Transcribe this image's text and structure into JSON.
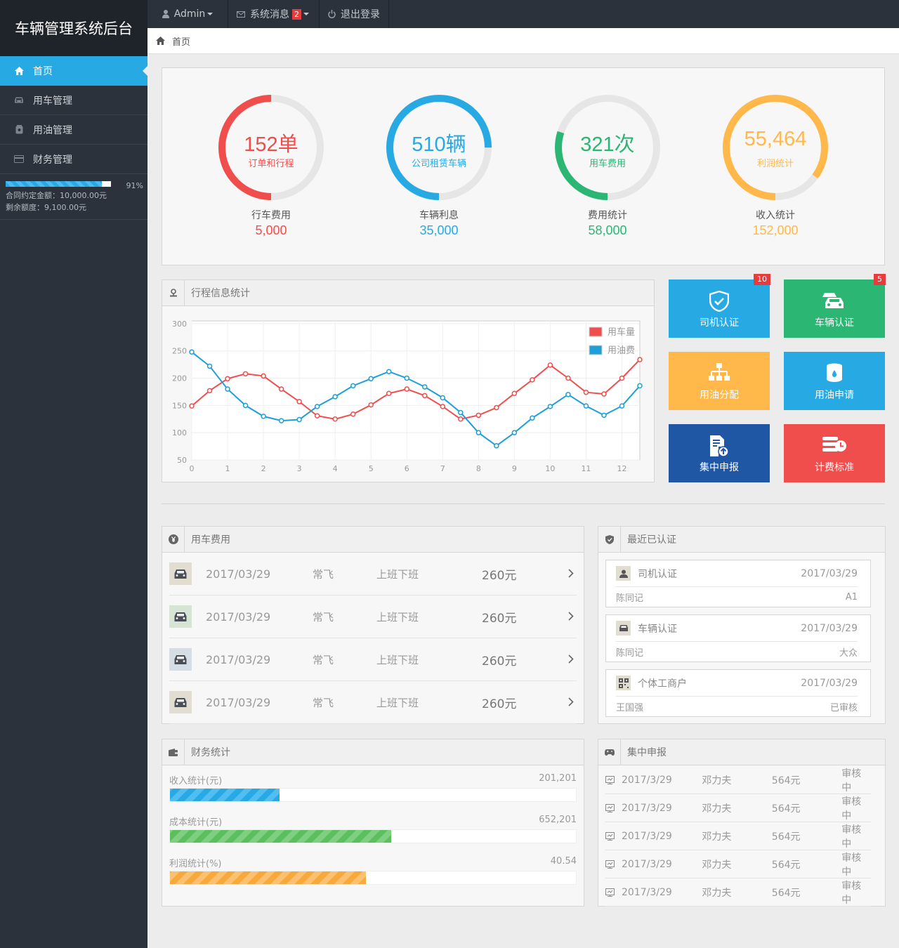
{
  "app": {
    "title": "车辆管理系统后台"
  },
  "sidebar": {
    "items": [
      {
        "label": "首页",
        "icon": "home-icon",
        "active": true
      },
      {
        "label": "用车管理",
        "icon": "car-icon"
      },
      {
        "label": "用油管理",
        "icon": "oil-icon"
      },
      {
        "label": "财务管理",
        "icon": "card-icon"
      }
    ],
    "quota": {
      "percent_label": "91%",
      "percent": 0.91,
      "contract": "合同约定金额：10,000.00元",
      "remaining": "剩余额度：9,100.00元"
    }
  },
  "topbar": {
    "user": "Admin",
    "messages": "系统消息",
    "message_count": "2",
    "logout": "退出登录"
  },
  "breadcrumb": {
    "home": "首页"
  },
  "stats": [
    {
      "value": "152单",
      "sub": "订单和行程",
      "label": "行车费用",
      "number": "5,000",
      "color": "#f04d4d",
      "fraction": 0.5
    },
    {
      "value": "510辆",
      "sub": "公司租赁车辆",
      "label": "车辆利息",
      "number": "35,000",
      "color": "#27a9e3",
      "fraction": 0.75
    },
    {
      "value": "321次",
      "sub": "用车费用",
      "label": "费用统计",
      "number": "58,000",
      "color": "#2cb673",
      "fraction": 0.3
    },
    {
      "value": "55,464",
      "sub": "利润统计",
      "label": "收入统计",
      "number": "152,000",
      "color": "#ffb849",
      "fraction": 0.85
    }
  ],
  "trip_panel": {
    "title": "行程信息统计"
  },
  "chart_data": {
    "type": "line",
    "x": [
      0,
      0.5,
      1,
      1.5,
      2,
      2.5,
      3,
      3.5,
      4,
      4.5,
      5,
      5.5,
      6,
      6.5,
      7,
      7.5,
      8,
      8.5,
      9,
      9.5,
      10,
      10.5,
      11,
      11.5,
      12,
      12.5
    ],
    "series": [
      {
        "name": "用车量",
        "color": "#f04d4d",
        "values": [
          149,
          177,
          199,
          208,
          204,
          180,
          157,
          131,
          125,
          134,
          151,
          172,
          180,
          168,
          148,
          125,
          132,
          146,
          172,
          197,
          224,
          200,
          174,
          171,
          200,
          234
        ]
      },
      {
        "name": "用油费",
        "color": "#1e9fd8",
        "values": [
          248,
          222,
          180,
          150,
          130,
          122,
          124,
          148,
          166,
          186,
          199,
          212,
          200,
          184,
          164,
          137,
          100,
          76,
          100,
          127,
          148,
          170,
          149,
          132,
          149,
          186
        ]
      }
    ],
    "ylim": [
      50,
      305
    ],
    "yticks": [
      50,
      100,
      150,
      200,
      250,
      300
    ],
    "xticks": [
      0,
      1,
      2,
      3,
      4,
      5,
      6,
      7,
      8,
      9,
      10,
      11,
      12
    ],
    "grid": true,
    "legend": "top-right"
  },
  "tiles": [
    {
      "label": "司机认证",
      "icon": "shield-icon",
      "color": "#27a9e3",
      "badge": "10"
    },
    {
      "label": "车辆认证",
      "icon": "cars-icon",
      "color": "#2cb673",
      "badge": "5"
    },
    {
      "label": "用油分配",
      "icon": "sitemap-icon",
      "color": "#ffb849",
      "badge": ""
    },
    {
      "label": "用油申请",
      "icon": "oil-drum-icon",
      "color": "#27a9e3",
      "badge": ""
    },
    {
      "label": "集中申报",
      "icon": "report-icon",
      "color": "#2057a5",
      "badge": ""
    },
    {
      "label": "计费标准",
      "icon": "billing-icon",
      "color": "#f04d4d",
      "badge": ""
    }
  ],
  "cost_panel": {
    "title": "用车费用",
    "rows": [
      {
        "date": "2017/03/29",
        "name": "常飞",
        "purpose": "上班下班",
        "amount": "260元",
        "icon_bg": "#e2ddd1"
      },
      {
        "date": "2017/03/29",
        "name": "常飞",
        "purpose": "上班下班",
        "amount": "260元",
        "icon_bg": "#d5e4d3"
      },
      {
        "date": "2017/03/29",
        "name": "常飞",
        "purpose": "上班下班",
        "amount": "260元",
        "icon_bg": "#d4dee4"
      },
      {
        "date": "2017/03/29",
        "name": "常飞",
        "purpose": "上班下班",
        "amount": "260元",
        "icon_bg": "#e2ddd1"
      }
    ]
  },
  "cert_panel": {
    "title": "最近已认证",
    "items": [
      {
        "type": "司机认证",
        "date": "2017/03/29",
        "name": "陈同记",
        "detail": "A1",
        "icon": "person-icon"
      },
      {
        "type": "车辆认证",
        "date": "2017/03/29",
        "name": "陈同记",
        "detail": "大众",
        "icon": "car-icon"
      },
      {
        "type": "个体工商户",
        "date": "2017/03/29",
        "name": "王国强",
        "detail": "已审核",
        "icon": "qr-icon"
      }
    ]
  },
  "finance_panel": {
    "title": "财务统计",
    "rows": [
      {
        "label": "收入统计(元)",
        "value": "201,201",
        "fraction": 0.27,
        "color_a": "#27a9e3",
        "color_b": "#52bdf0"
      },
      {
        "label": "成本统计(元)",
        "value": "652,201",
        "fraction": 0.545,
        "color_a": "#5cbf5e",
        "color_b": "#7ed080"
      },
      {
        "label": "利润统计(%)",
        "value": "40.54",
        "fraction": 0.483,
        "color_a": "#f8a93c",
        "color_b": "#fbc170"
      }
    ]
  },
  "report_panel": {
    "title": "集中申报",
    "rows": [
      {
        "date": "2017/3/29",
        "name": "邓力夫",
        "amount": "564元",
        "status": "审核中"
      },
      {
        "date": "2017/3/29",
        "name": "邓力夫",
        "amount": "564元",
        "status": "审核中"
      },
      {
        "date": "2017/3/29",
        "name": "邓力夫",
        "amount": "564元",
        "status": "审核中"
      },
      {
        "date": "2017/3/29",
        "name": "邓力夫",
        "amount": "564元",
        "status": "审核中"
      },
      {
        "date": "2017/3/29",
        "name": "邓力夫",
        "amount": "564元",
        "status": "审核中"
      }
    ]
  }
}
